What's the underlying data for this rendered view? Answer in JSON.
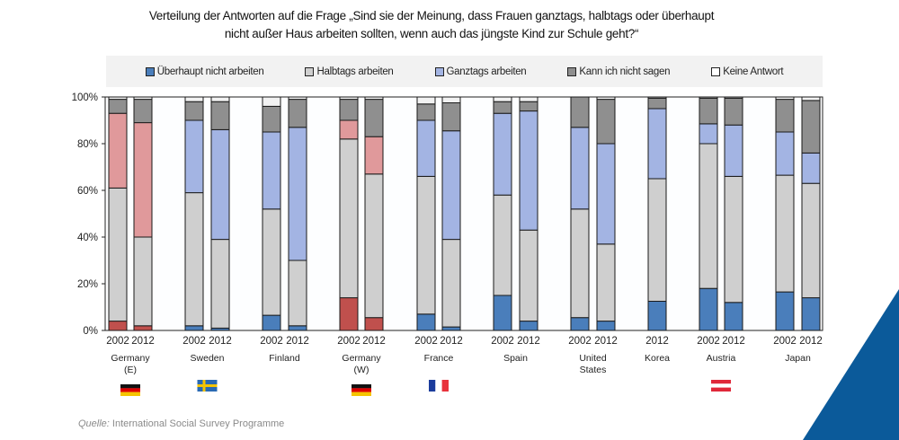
{
  "title_line1": "Verteilung der Antworten auf die Frage „Sind sie der Meinung, dass Frauen ganztags, halbtags oder überhaupt",
  "title_line2": "nicht außer Haus arbeiten sollten, wenn auch das jüngste Kind zur Schule geht?“",
  "source_label": "Quelle:",
  "source_text": " International  Social Survey Programme",
  "colors": {
    "nicht": "#4a7ebb",
    "halb": "#cfcfcf",
    "ganz": "#a3b4e3",
    "kann": "#8f8f8f",
    "keine": "#f2f2f2",
    "nicht_de": "#c0504d",
    "ganz_de": "#e0999b",
    "accent": "#0b5a9a"
  },
  "chart_data": {
    "type": "stacked-bar",
    "ylim": [
      0,
      100
    ],
    "yticks": [
      "0%",
      "20%",
      "40%",
      "60%",
      "80%",
      "100%"
    ],
    "legend_position": "top",
    "series_names": [
      "Überhaupt nicht arbeiten",
      "Halbtags arbeiten",
      "Ganztags arbeiten",
      "Kann ich nicht sagen",
      "Keine Antwort"
    ],
    "groups": [
      {
        "country": [
          "Germany",
          "(E)"
        ],
        "flag": "germany",
        "red": true,
        "bars": [
          {
            "year": "2002",
            "values": [
              4,
              57,
              32,
              6,
              1
            ]
          },
          {
            "year": "2012",
            "values": [
              2,
              38,
              49,
              10,
              1
            ]
          }
        ]
      },
      {
        "country": [
          "Sweden"
        ],
        "flag": "sweden",
        "bars": [
          {
            "year": "2002",
            "values": [
              2,
              57,
              31,
              8,
              2
            ]
          },
          {
            "year": "2012",
            "values": [
              1,
              38,
              47,
              12,
              2
            ]
          }
        ]
      },
      {
        "country": [
          "Finland"
        ],
        "bars": [
          {
            "year": "2002",
            "values": [
              6.5,
              45.5,
              33,
              11,
              4
            ]
          },
          {
            "year": "2012",
            "values": [
              2,
              28,
              57,
              12,
              1
            ]
          }
        ]
      },
      {
        "country": [
          "Germany",
          "(W)"
        ],
        "flag": "germany",
        "red": true,
        "bars": [
          {
            "year": "2002",
            "values": [
              14,
              68,
              8,
              9,
              1
            ]
          },
          {
            "year": "2012",
            "values": [
              5.5,
              61.5,
              16,
              16,
              1
            ]
          }
        ]
      },
      {
        "country": [
          "France"
        ],
        "flag": "france",
        "bars": [
          {
            "year": "2002",
            "values": [
              7,
              59,
              24,
              7,
              3
            ]
          },
          {
            "year": "2012",
            "values": [
              1.5,
              37.5,
              46.5,
              12,
              2.5
            ]
          }
        ]
      },
      {
        "country": [
          "Spain"
        ],
        "bars": [
          {
            "year": "2002",
            "values": [
              15,
              43,
              35,
              5,
              2
            ]
          },
          {
            "year": "2012",
            "values": [
              4,
              39,
              51,
              4,
              2
            ]
          }
        ]
      },
      {
        "country": [
          "United",
          "States"
        ],
        "bars": [
          {
            "year": "2002",
            "values": [
              5.5,
              46.5,
              35,
              13,
              0
            ]
          },
          {
            "year": "2012",
            "values": [
              4,
              33,
              43,
              19,
              1
            ]
          }
        ]
      },
      {
        "country": [
          "Korea"
        ],
        "bars": [
          {
            "year": "2012",
            "values": [
              12.5,
              52.5,
              30,
              4.5,
              0.5
            ]
          }
        ]
      },
      {
        "country": [
          "Austria"
        ],
        "flag": "austria",
        "bars": [
          {
            "year": "2002",
            "values": [
              18,
              62,
              8.5,
              11,
              0.5
            ]
          },
          {
            "year": "2012",
            "values": [
              12,
              54,
              22,
              11.5,
              0.5
            ]
          }
        ]
      },
      {
        "country": [
          "Japan"
        ],
        "bars": [
          {
            "year": "2002",
            "values": [
              16.5,
              50,
              18.5,
              14,
              1
            ]
          },
          {
            "year": "2012",
            "values": [
              14,
              49,
              13,
              22.5,
              1.5
            ]
          }
        ]
      }
    ]
  }
}
